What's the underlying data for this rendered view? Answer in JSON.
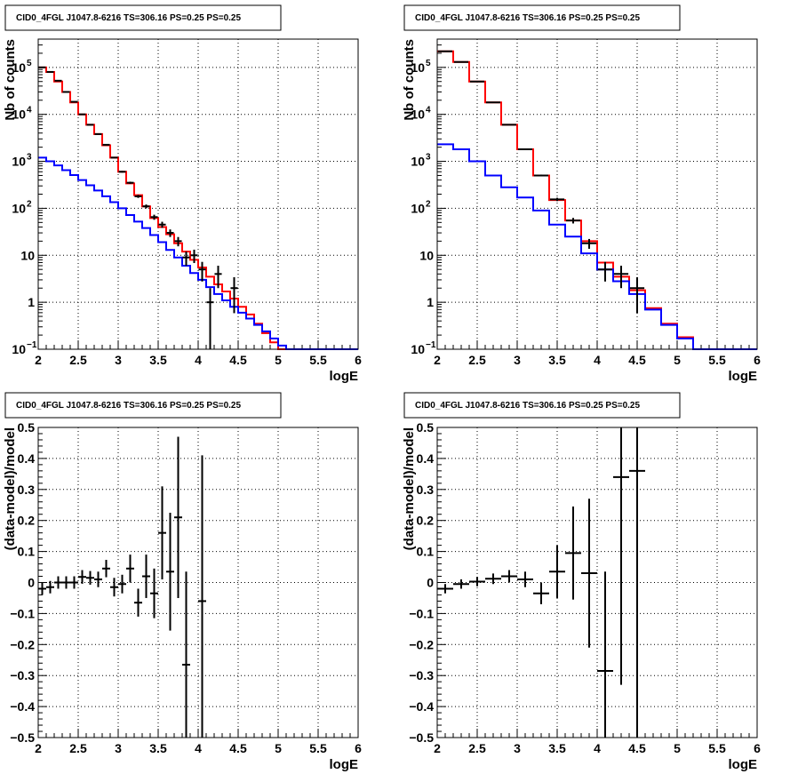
{
  "chart_data": [
    {
      "id": "top-left",
      "type": "step",
      "title": "CID0_4FGL J1047.8-6216 TS=306.16 PS=0.25 PS=0.25",
      "xlabel": "logE",
      "ylabel": "Nb of counts",
      "ylog": true,
      "xlim": [
        2,
        6
      ],
      "ylim": [
        0.1,
        400000
      ],
      "grid": true,
      "x_ticks": [
        "2",
        "2.5",
        "3",
        "3.5",
        "4",
        "4.5",
        "5",
        "5.5",
        "6"
      ],
      "y_ticks": [
        {
          "value": 0.1,
          "label": "10",
          "sup": "−1"
        },
        {
          "value": 1,
          "label": "1",
          "sup": ""
        },
        {
          "value": 10,
          "label": "10",
          "sup": ""
        },
        {
          "value": 100,
          "label": "10",
          "sup": "2"
        },
        {
          "value": 1000,
          "label": "10",
          "sup": "3"
        },
        {
          "value": 10000,
          "label": "10",
          "sup": "4"
        },
        {
          "value": 100000,
          "label": "10",
          "sup": "5"
        }
      ],
      "bin_edges": [
        2.0,
        2.1,
        2.2,
        2.3,
        2.4,
        2.5,
        2.6,
        2.7,
        2.8,
        2.9,
        3.0,
        3.1,
        3.2,
        3.3,
        3.4,
        3.5,
        3.6,
        3.7,
        3.8,
        3.9,
        4.0,
        4.1,
        4.2,
        4.3,
        4.4,
        4.5,
        4.6,
        4.7,
        4.8,
        4.9,
        5.0,
        5.1,
        5.2,
        5.3,
        5.4,
        5.5,
        5.6,
        5.7,
        5.8,
        5.9,
        6.0
      ],
      "series": [
        {
          "color": "#ff0000",
          "values": [
            100000,
            80000,
            50000,
            30000,
            18000,
            10000,
            6000,
            3800,
            2200,
            1200,
            600,
            340,
            190,
            110,
            62,
            40,
            28,
            18,
            12,
            8,
            5.5,
            3.5,
            2.4,
            1.7,
            1.2,
            0.8,
            0.55,
            0.35,
            0.22,
            0.14,
            0.1,
            0.1,
            0.1,
            0.1,
            0.1,
            0.1,
            0.1,
            0.1,
            0.1,
            0.1
          ]
        },
        {
          "color": "#0000ff",
          "values": [
            1200,
            1000,
            820,
            650,
            510,
            400,
            310,
            240,
            180,
            135,
            100,
            72,
            52,
            38,
            27,
            19,
            13,
            9,
            6,
            4.2,
            3,
            2.1,
            1.5,
            1.1,
            0.8,
            0.6,
            0.45,
            0.33,
            0.24,
            0.17,
            0.12,
            0.1,
            0.1,
            0.1,
            0.1,
            0.1,
            0.1,
            0.1,
            0.1,
            0.1
          ]
        }
      ],
      "points": [
        {
          "x": 2.05,
          "y": 100000
        },
        {
          "x": 2.15,
          "y": 80000
        },
        {
          "x": 2.25,
          "y": 52000
        },
        {
          "x": 2.35,
          "y": 30000
        },
        {
          "x": 2.45,
          "y": 18500
        },
        {
          "x": 2.55,
          "y": 10000
        },
        {
          "x": 2.65,
          "y": 6000
        },
        {
          "x": 2.75,
          "y": 3800
        },
        {
          "x": 2.85,
          "y": 2250
        },
        {
          "x": 2.95,
          "y": 1200
        },
        {
          "x": 3.05,
          "y": 600
        },
        {
          "x": 3.15,
          "y": 350
        },
        {
          "x": 3.25,
          "y": 180
        },
        {
          "x": 3.35,
          "y": 110
        },
        {
          "x": 3.45,
          "y": 65
        },
        {
          "x": 3.55,
          "y": 45
        },
        {
          "x": 3.65,
          "y": 30
        },
        {
          "x": 3.75,
          "y": 20
        },
        {
          "x": 3.85,
          "y": 9
        },
        {
          "x": 3.95,
          "y": 10
        },
        {
          "x": 4.05,
          "y": 5
        },
        {
          "x": 4.15,
          "y": 1
        },
        {
          "x": 4.25,
          "y": 4
        },
        {
          "x": 4.45,
          "y": 2
        }
      ]
    },
    {
      "id": "top-right",
      "type": "step",
      "title": "CID0_4FGL J1047.8-6216 TS=306.16 PS=0.25 PS=0.25",
      "xlabel": "logE",
      "ylabel": "Nb of counts",
      "ylog": true,
      "xlim": [
        2,
        6
      ],
      "ylim": [
        0.1,
        400000
      ],
      "grid": true,
      "x_ticks": [
        "2",
        "2.5",
        "3",
        "3.5",
        "4",
        "4.5",
        "5",
        "5.5",
        "6"
      ],
      "y_ticks": [
        {
          "value": 0.1,
          "label": "10",
          "sup": "−1"
        },
        {
          "value": 1,
          "label": "1",
          "sup": ""
        },
        {
          "value": 10,
          "label": "10",
          "sup": ""
        },
        {
          "value": 100,
          "label": "10",
          "sup": "2"
        },
        {
          "value": 1000,
          "label": "10",
          "sup": "3"
        },
        {
          "value": 10000,
          "label": "10",
          "sup": "4"
        },
        {
          "value": 100000,
          "label": "10",
          "sup": "5"
        }
      ],
      "bin_edges": [
        2.0,
        2.2,
        2.4,
        2.6,
        2.8,
        3.0,
        3.2,
        3.4,
        3.6,
        3.8,
        4.0,
        4.2,
        4.4,
        4.6,
        4.8,
        5.0,
        5.2,
        5.4,
        5.6,
        5.8,
        6.0
      ],
      "series": [
        {
          "color": "#ff0000",
          "values": [
            220000,
            130000,
            50000,
            18000,
            6000,
            1800,
            500,
            150,
            55,
            20,
            7,
            3.5,
            1.8,
            0.75,
            0.35,
            0.18,
            0.1,
            0.1,
            0.1,
            0.1
          ]
        },
        {
          "color": "#0000ff",
          "values": [
            2300,
            1800,
            1000,
            500,
            280,
            170,
            90,
            45,
            25,
            11,
            5,
            2.8,
            1.5,
            0.7,
            0.33,
            0.17,
            0.1,
            0.1,
            0.1,
            0.1
          ]
        }
      ],
      "points": [
        {
          "x": 2.1,
          "y": 220000
        },
        {
          "x": 2.3,
          "y": 130000
        },
        {
          "x": 2.5,
          "y": 50000
        },
        {
          "x": 2.7,
          "y": 18000
        },
        {
          "x": 2.9,
          "y": 6000
        },
        {
          "x": 3.1,
          "y": 1800
        },
        {
          "x": 3.3,
          "y": 500
        },
        {
          "x": 3.5,
          "y": 155
        },
        {
          "x": 3.7,
          "y": 55
        },
        {
          "x": 3.9,
          "y": 18
        },
        {
          "x": 4.1,
          "y": 5
        },
        {
          "x": 4.3,
          "y": 4
        },
        {
          "x": 4.5,
          "y": 2
        }
      ]
    },
    {
      "id": "bottom-left",
      "type": "errorbar",
      "title": "CID0_4FGL J1047.8-6216 TS=306.16 PS=0.25 PS=0.25",
      "xlabel": "logE",
      "ylabel": "(data-model)/model",
      "ylog": false,
      "xlim": [
        2,
        6
      ],
      "ylim": [
        -0.5,
        0.5
      ],
      "grid": true,
      "x_ticks": [
        "2",
        "2.5",
        "3",
        "3.5",
        "4",
        "4.5",
        "5",
        "5.5",
        "6"
      ],
      "y_ticks": [
        {
          "value": -0.5,
          "label": "−0.5"
        },
        {
          "value": -0.4,
          "label": "−0.4"
        },
        {
          "value": -0.3,
          "label": "−0.3"
        },
        {
          "value": -0.2,
          "label": "−0.2"
        },
        {
          "value": -0.1,
          "label": "−0.1"
        },
        {
          "value": 0,
          "label": "0"
        },
        {
          "value": 0.1,
          "label": "0.1"
        },
        {
          "value": 0.2,
          "label": "0.2"
        },
        {
          "value": 0.3,
          "label": "0.3"
        },
        {
          "value": 0.4,
          "label": "0.4"
        },
        {
          "value": 0.5,
          "label": "0.5"
        }
      ],
      "bin_half_width": 0.05,
      "points": [
        {
          "x": 2.05,
          "y": -0.02,
          "err": 0.02
        },
        {
          "x": 2.15,
          "y": -0.015,
          "err": 0.02
        },
        {
          "x": 2.25,
          "y": 0.0,
          "err": 0.02
        },
        {
          "x": 2.35,
          "y": 0.0,
          "err": 0.02
        },
        {
          "x": 2.45,
          "y": 0.0,
          "err": 0.02
        },
        {
          "x": 2.55,
          "y": 0.018,
          "err": 0.022
        },
        {
          "x": 2.65,
          "y": 0.015,
          "err": 0.022
        },
        {
          "x": 2.75,
          "y": 0.01,
          "err": 0.025
        },
        {
          "x": 2.85,
          "y": 0.045,
          "err": 0.028
        },
        {
          "x": 2.95,
          "y": -0.015,
          "err": 0.03
        },
        {
          "x": 3.05,
          "y": -0.005,
          "err": 0.03
        },
        {
          "x": 3.15,
          "y": 0.045,
          "err": 0.045
        },
        {
          "x": 3.25,
          "y": -0.065,
          "err": 0.045
        },
        {
          "x": 3.35,
          "y": 0.02,
          "err": 0.07
        },
        {
          "x": 3.45,
          "y": -0.035,
          "err": 0.08
        },
        {
          "x": 3.55,
          "y": 0.16,
          "err": 0.15
        },
        {
          "x": 3.65,
          "y": 0.035,
          "err": 0.19
        },
        {
          "x": 3.75,
          "y": 0.21,
          "err": 0.26
        },
        {
          "x": 3.85,
          "y": -0.265,
          "err": 0.3
        },
        {
          "x": 4.05,
          "y": -0.06,
          "err": 0.47
        }
      ]
    },
    {
      "id": "bottom-right",
      "type": "errorbar",
      "title": "CID0_4FGL J1047.8-6216 TS=306.16 PS=0.25 PS=0.25",
      "xlabel": "logE",
      "ylabel": "(data-model)/model",
      "ylog": false,
      "xlim": [
        2,
        6
      ],
      "ylim": [
        -0.5,
        0.5
      ],
      "grid": true,
      "x_ticks": [
        "2",
        "2.5",
        "3",
        "3.5",
        "4",
        "4.5",
        "5",
        "5.5",
        "6"
      ],
      "y_ticks": [
        {
          "value": -0.5,
          "label": "−0.5"
        },
        {
          "value": -0.4,
          "label": "−0.4"
        },
        {
          "value": -0.3,
          "label": "−0.3"
        },
        {
          "value": -0.2,
          "label": "−0.2"
        },
        {
          "value": -0.1,
          "label": "−0.1"
        },
        {
          "value": 0,
          "label": "0"
        },
        {
          "value": 0.1,
          "label": "0.1"
        },
        {
          "value": 0.2,
          "label": "0.2"
        },
        {
          "value": 0.3,
          "label": "0.3"
        },
        {
          "value": 0.4,
          "label": "0.4"
        },
        {
          "value": 0.5,
          "label": "0.5"
        }
      ],
      "bin_half_width": 0.1,
      "points": [
        {
          "x": 2.1,
          "y": -0.02,
          "err": 0.015
        },
        {
          "x": 2.3,
          "y": -0.005,
          "err": 0.015
        },
        {
          "x": 2.5,
          "y": 0.003,
          "err": 0.015
        },
        {
          "x": 2.7,
          "y": 0.012,
          "err": 0.017
        },
        {
          "x": 2.9,
          "y": 0.02,
          "err": 0.02
        },
        {
          "x": 3.1,
          "y": 0.01,
          "err": 0.025
        },
        {
          "x": 3.3,
          "y": -0.035,
          "err": 0.035
        },
        {
          "x": 3.5,
          "y": 0.035,
          "err": 0.085
        },
        {
          "x": 3.7,
          "y": 0.095,
          "err": 0.15
        },
        {
          "x": 3.9,
          "y": 0.03,
          "err": 0.24
        },
        {
          "x": 4.1,
          "y": -0.285,
          "err": 0.32
        },
        {
          "x": 4.3,
          "y": 0.34,
          "err": 0.67
        },
        {
          "x": 4.5,
          "y": 0.36,
          "err": 0.9
        }
      ]
    }
  ]
}
